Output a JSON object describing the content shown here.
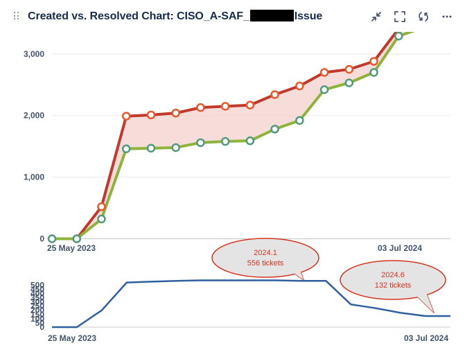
{
  "header": {
    "title_prefix": "Created vs. Resolved Chart: CISO_A-SAF_",
    "title_suffix": "Issue",
    "actions": [
      {
        "name": "minimize-icon",
        "label": "Minimize"
      },
      {
        "name": "fullscreen-icon",
        "label": "Full screen"
      },
      {
        "name": "refresh-icon",
        "label": "Refresh"
      },
      {
        "name": "more-options-icon",
        "label": "More"
      }
    ]
  },
  "colors": {
    "created": "#c0392b",
    "created_marker": "#e8562a",
    "resolved": "#8db33a",
    "resolved_marker": "#4f9a7a",
    "gap_fill": "#f3d2cc",
    "unresolved_line": "#2f5f9e",
    "callout_fill": "#e4e4e4",
    "callout_stroke": "#d6331f"
  },
  "chart_data": [
    {
      "type": "line",
      "title": "",
      "xlabel": "",
      "ylabel": "",
      "x_start_label": "25 May 2023",
      "x_end_label": "03 Jul 2024",
      "ylim": [
        0,
        3600
      ],
      "yticks": [
        0,
        1000,
        2000,
        3000
      ],
      "ytick_labels": [
        "0",
        "1,000",
        "2,000",
        "3,000"
      ],
      "grid": true,
      "series": [
        {
          "key": "created",
          "values": [
            0,
            0,
            520,
            1990,
            2010,
            2040,
            2130,
            2150,
            2170,
            2340,
            2480,
            2700,
            2750,
            2880,
            3410,
            3560
          ]
        },
        {
          "key": "resolved",
          "values": [
            0,
            0,
            320,
            1460,
            1470,
            1480,
            1560,
            1580,
            1590,
            1780,
            1920,
            2420,
            2530,
            2700,
            3290,
            3430
          ]
        }
      ]
    },
    {
      "type": "line",
      "title": "",
      "x_start_label": "25 May 2023",
      "x_end_label": "03 Jul 2024",
      "ylim": [
        0,
        560
      ],
      "yticks": [
        0,
        50,
        100,
        150,
        200,
        250,
        300,
        350,
        400,
        450,
        500
      ],
      "ytick_labels": [
        "0",
        "50",
        "100",
        "150",
        "200",
        "250",
        "300",
        "350",
        "400",
        "450",
        "500"
      ],
      "series": [
        {
          "key": "unresolved",
          "values": [
            0,
            0,
            200,
            530,
            540,
            550,
            556,
            556,
            556,
            556,
            550,
            550,
            270,
            225,
            170,
            132,
            132
          ]
        }
      ],
      "annotations": [
        {
          "version": "2024.1",
          "tickets": "556 tickets"
        },
        {
          "version": "2024.6",
          "tickets": "132 tickets"
        }
      ]
    }
  ]
}
